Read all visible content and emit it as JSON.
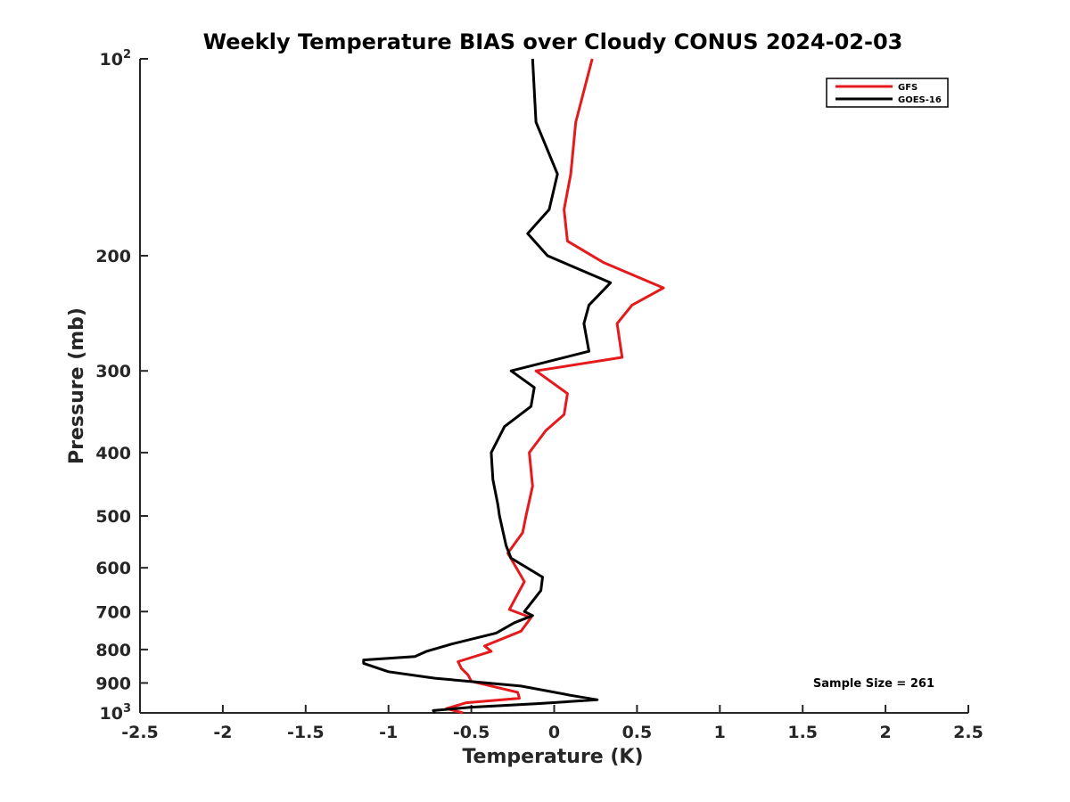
{
  "chart_data": {
    "type": "line",
    "title": "Weekly Temperature BIAS over Cloudy CONUS 2024-02-03",
    "xlabel": "Temperature (K)",
    "ylabel": "Pressure (mb)",
    "xlim": [
      -2.5,
      2.5
    ],
    "ylim": [
      100,
      1000
    ],
    "y_scale": "log",
    "y_reversed": true,
    "grid": false,
    "legend_position": "top-right",
    "x_ticks": [
      -2.5,
      -2,
      -1.5,
      -1,
      -0.5,
      0,
      0.5,
      1,
      1.5,
      2,
      2.5
    ],
    "x_tick_labels": [
      "-2.5",
      "-2",
      "-1.5",
      "-1",
      "-0.5",
      "0",
      "0.5",
      "1",
      "1.5",
      "2",
      "2.5"
    ],
    "y_ticks": [
      100,
      200,
      300,
      400,
      500,
      600,
      700,
      800,
      900,
      1000
    ],
    "y_tick_labels": [
      {
        "base": "10",
        "sup": "2"
      },
      {
        "base": "200"
      },
      {
        "base": "300"
      },
      {
        "base": "400"
      },
      {
        "base": "500"
      },
      {
        "base": "600"
      },
      {
        "base": "700"
      },
      {
        "base": "800"
      },
      {
        "base": "900"
      },
      {
        "base": "10",
        "sup": "3"
      }
    ],
    "series": [
      {
        "name": "GFS",
        "color": "#e41a1c",
        "points": [
          [
            0.23,
            100
          ],
          [
            0.13,
            125
          ],
          [
            0.1,
            150
          ],
          [
            0.06,
            170
          ],
          [
            0.08,
            190
          ],
          [
            0.3,
            205
          ],
          [
            0.66,
            224
          ],
          [
            0.47,
            238
          ],
          [
            0.38,
            254
          ],
          [
            0.41,
            286
          ],
          [
            -0.11,
            300
          ],
          [
            0.08,
            325
          ],
          [
            0.06,
            350
          ],
          [
            -0.05,
            370
          ],
          [
            -0.15,
            400
          ],
          [
            -0.13,
            450
          ],
          [
            -0.17,
            500
          ],
          [
            -0.19,
            530
          ],
          [
            -0.28,
            570
          ],
          [
            -0.18,
            630
          ],
          [
            -0.27,
            695
          ],
          [
            -0.14,
            715
          ],
          [
            -0.2,
            750
          ],
          [
            -0.42,
            790
          ],
          [
            -0.38,
            805
          ],
          [
            -0.58,
            835
          ],
          [
            -0.56,
            855
          ],
          [
            -0.52,
            875
          ],
          [
            -0.5,
            895
          ],
          [
            -0.22,
            930
          ],
          [
            -0.21,
            950
          ],
          [
            -0.53,
            965
          ],
          [
            -0.65,
            985
          ],
          [
            -0.55,
            1000
          ]
        ]
      },
      {
        "name": "GOES-16",
        "color": "#000000",
        "points": [
          [
            -0.13,
            100
          ],
          [
            -0.11,
            125
          ],
          [
            0.02,
            150
          ],
          [
            -0.03,
            170
          ],
          [
            -0.16,
            185
          ],
          [
            -0.04,
            200
          ],
          [
            0.34,
            220
          ],
          [
            0.21,
            238
          ],
          [
            0.18,
            254
          ],
          [
            0.21,
            280
          ],
          [
            -0.26,
            300
          ],
          [
            -0.12,
            318
          ],
          [
            -0.14,
            340
          ],
          [
            -0.3,
            365
          ],
          [
            -0.38,
            400
          ],
          [
            -0.37,
            440
          ],
          [
            -0.34,
            480
          ],
          [
            -0.33,
            500
          ],
          [
            -0.29,
            555
          ],
          [
            -0.26,
            580
          ],
          [
            -0.07,
            620
          ],
          [
            -0.08,
            650
          ],
          [
            -0.18,
            700
          ],
          [
            -0.13,
            710
          ],
          [
            -0.24,
            728
          ],
          [
            -0.35,
            755
          ],
          [
            -0.62,
            785
          ],
          [
            -0.77,
            805
          ],
          [
            -0.84,
            820
          ],
          [
            -1.15,
            830
          ],
          [
            -1.15,
            840
          ],
          [
            -1.0,
            865
          ],
          [
            -0.72,
            885
          ],
          [
            -0.2,
            910
          ],
          [
            0.1,
            940
          ],
          [
            0.26,
            955
          ],
          [
            -0.1,
            968
          ],
          [
            -0.5,
            980
          ],
          [
            -0.73,
            992
          ],
          [
            -0.72,
            1000
          ]
        ]
      }
    ],
    "annotations": [
      {
        "text": "Sample Size = 261",
        "position": "bottom-right"
      }
    ]
  }
}
